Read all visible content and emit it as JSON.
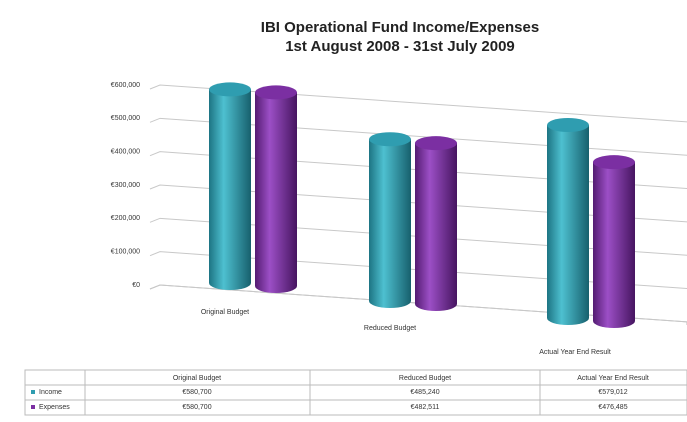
{
  "chart_data": {
    "type": "bar3d",
    "title": "IBI Operational Fund Income/Expenses",
    "subtitle": "1st August 2008 - 31st July 2009",
    "categories": [
      "Original Budget",
      "Reduced Budget",
      "Actual Year End Result"
    ],
    "series": [
      {
        "name": "Income",
        "color": "#2f9db0",
        "values": [
          580700,
          485240,
          579012
        ],
        "value_labels": [
          "€580,700",
          "€485,240",
          "€579,012"
        ]
      },
      {
        "name": "Expenses",
        "color": "#7b2fa2",
        "values": [
          580700,
          482511,
          476485
        ],
        "value_labels": [
          "€580,700",
          "€482,511",
          "€476,485"
        ]
      }
    ],
    "ylim": [
      0,
      600000
    ],
    "yticks": [
      {
        "value": 0,
        "label": "€0"
      },
      {
        "value": 100000,
        "label": "€100,000"
      },
      {
        "value": 200000,
        "label": "€200,000"
      },
      {
        "value": 300000,
        "label": "€300,000"
      },
      {
        "value": 400000,
        "label": "€400,000"
      },
      {
        "value": 500000,
        "label": "€500,000"
      },
      {
        "value": 600000,
        "label": "€600,000"
      }
    ],
    "grid": true
  }
}
